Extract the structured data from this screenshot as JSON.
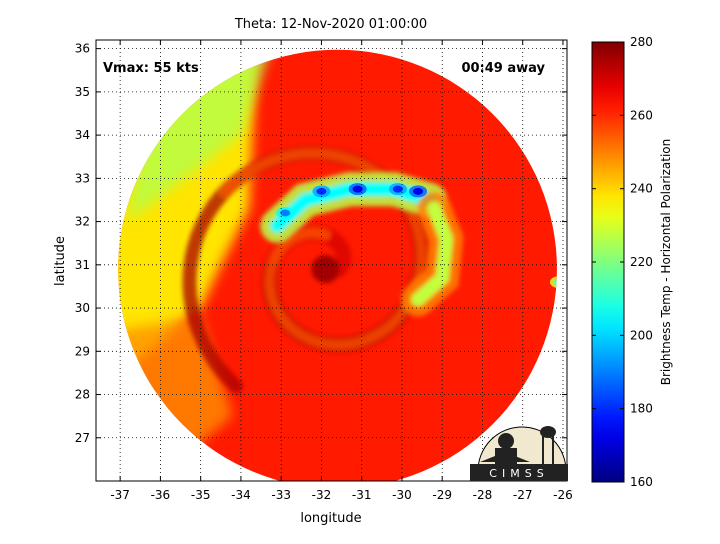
{
  "chart_data": {
    "type": "heatmap",
    "title": "Theta: 12-Nov-2020 01:00:00",
    "xlabel": "longitude",
    "ylabel": "latitude",
    "xlim": [
      -37.6,
      -25.9
    ],
    "ylim": [
      26.0,
      36.2
    ],
    "xticks": [
      -37,
      -36,
      -35,
      -34,
      -33,
      -32,
      -31,
      -30,
      -29,
      -28,
      -27,
      -26
    ],
    "yticks": [
      27,
      28,
      29,
      30,
      31,
      32,
      33,
      34,
      35,
      36
    ],
    "grid": true,
    "annotations": {
      "vmax": "Vmax: 55 kts",
      "away": "00:49 away"
    },
    "storm_center": {
      "lon": -31.9,
      "lat": 30.9
    },
    "swath_circle": {
      "center_lon": -31.6,
      "center_lat": 30.9,
      "radius_deg": 5.45
    },
    "bands": [
      {
        "name": "north-band",
        "points": [
          [
            -33.1,
            31.9
          ],
          [
            -32.4,
            32.5
          ],
          [
            -31.3,
            32.75
          ],
          [
            -30.2,
            32.75
          ],
          [
            -29.3,
            32.5
          ]
        ],
        "temp": 205
      },
      {
        "name": "east-band",
        "points": [
          [
            -29.2,
            32.3
          ],
          [
            -28.9,
            31.6
          ],
          [
            -29.0,
            30.7
          ],
          [
            -29.6,
            30.2
          ]
        ],
        "temp": 228
      }
    ],
    "cold_spots": [
      {
        "lon": -32.9,
        "lat": 32.2,
        "temp": 190
      },
      {
        "lon": -32.0,
        "lat": 32.7,
        "temp": 180
      },
      {
        "lon": -31.1,
        "lat": 32.75,
        "temp": 172
      },
      {
        "lon": -30.1,
        "lat": 32.75,
        "temp": 180
      },
      {
        "lon": -29.6,
        "lat": 32.7,
        "temp": 172
      },
      {
        "lon": -26.1,
        "lat": 30.6,
        "temp": 215
      }
    ],
    "colorbar": {
      "label": "Brightness Temp - Horizontal Polarization",
      "min": 160,
      "max": 280,
      "ticks": [
        160,
        180,
        200,
        220,
        240,
        260,
        280
      ],
      "colormap": "jet"
    }
  },
  "logo": {
    "text": "CIMSS"
  },
  "colors": {
    "axis": "#000000",
    "grid": "#000000",
    "background": "#ffffff"
  }
}
